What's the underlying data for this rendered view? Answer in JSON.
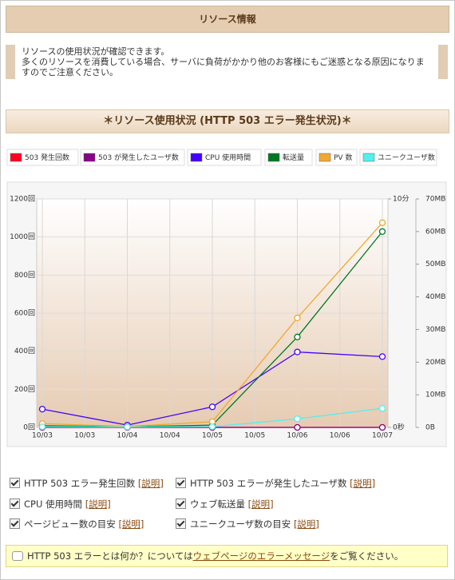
{
  "header": {
    "title": "リソース情報"
  },
  "notice": {
    "lines": [
      "リソースの使用状況が確認できます。",
      "多くのリソースを消費している場合、サーバに負荷がかかり他のお客様にもご迷惑となる原因になりますのでご注意ください。"
    ]
  },
  "section": {
    "title": "＊リソース使用状況 (HTTP 503 エラー発生状況)＊"
  },
  "chart_data": {
    "type": "line",
    "x": [
      0,
      1,
      2,
      3,
      4
    ],
    "xlim": [
      0,
      4
    ],
    "xticks": [
      {
        "value": 0,
        "label": "10/03"
      },
      {
        "value": 0.5,
        "label": "10/03"
      },
      {
        "value": 1,
        "label": "10/04"
      },
      {
        "value": 1.5,
        "label": "10/04"
      },
      {
        "value": 2,
        "label": "10/05"
      },
      {
        "value": 2.5,
        "label": "10/05"
      },
      {
        "value": 3,
        "label": "10/06"
      },
      {
        "value": 3.5,
        "label": "10/06"
      },
      {
        "value": 4,
        "label": "10/07"
      }
    ],
    "ylim": [
      0,
      1200
    ],
    "yticks": [
      {
        "value": 0,
        "label": "0回"
      },
      {
        "value": 200,
        "label": "200回"
      },
      {
        "value": 400,
        "label": "400回"
      },
      {
        "value": 600,
        "label": "600回"
      },
      {
        "value": 800,
        "label": "800回"
      },
      {
        "value": 1000,
        "label": "1000回"
      },
      {
        "value": 1200,
        "label": "1200回"
      }
    ],
    "y2lim": [
      0,
      10
    ],
    "y2ticks": [
      {
        "value": 0,
        "label": "0秒"
      },
      {
        "value": 10,
        "label": "10分"
      }
    ],
    "y3lim": [
      0,
      70
    ],
    "y3ticks": [
      {
        "value": 0,
        "label": "0B"
      },
      {
        "value": 10,
        "label": "10MB"
      },
      {
        "value": 20,
        "label": "20MB"
      },
      {
        "value": 30,
        "label": "30MB"
      },
      {
        "value": 40,
        "label": "40MB"
      },
      {
        "value": 50,
        "label": "50MB"
      },
      {
        "value": 60,
        "label": "60MB"
      },
      {
        "value": 70,
        "label": "70MB"
      }
    ],
    "grid": true,
    "series": [
      {
        "name": "503 発生回数",
        "color": "#ff0022",
        "values": [
          0,
          0,
          0,
          0,
          0
        ]
      },
      {
        "name": "503 が発生したユーザ数",
        "color": "#880088",
        "values": [
          0,
          0,
          0,
          0,
          0
        ]
      },
      {
        "name": "CPU 使用時間",
        "color": "#4400ff",
        "axis": "y2",
        "values": [
          0.8,
          0.1,
          0.9,
          3.3,
          3.1
        ]
      },
      {
        "name": "転送量",
        "color": "#007722",
        "axis": "y3",
        "values": [
          0.5,
          0.2,
          0.7,
          27.7,
          60
        ]
      },
      {
        "name": "PV 数",
        "color": "#f0a830",
        "values": [
          20,
          5,
          30,
          575,
          1075
        ]
      },
      {
        "name": "ユニークユーザ数",
        "color": "#55eeee",
        "values": [
          3,
          2,
          4,
          45,
          100
        ]
      }
    ]
  },
  "options": [
    {
      "label": "HTTP 503 エラー発生回数",
      "link": "[説明]"
    },
    {
      "label": "HTTP 503 エラーが発生したユーザ数",
      "link": "[説明]"
    },
    {
      "label": "CPU 使用時間",
      "link": "[説明]"
    },
    {
      "label": "ウェブ転送量",
      "link": "[説明]"
    },
    {
      "label": "ページビュー数の目安",
      "link": "[説明]"
    },
    {
      "label": "ユニークユーザ数の目安",
      "link": "[説明]"
    }
  ],
  "footer": {
    "before": "HTTP 503 エラーとは何か？については",
    "link": "ウェブページのエラーメッセージ",
    "after": "をご覧ください。"
  }
}
